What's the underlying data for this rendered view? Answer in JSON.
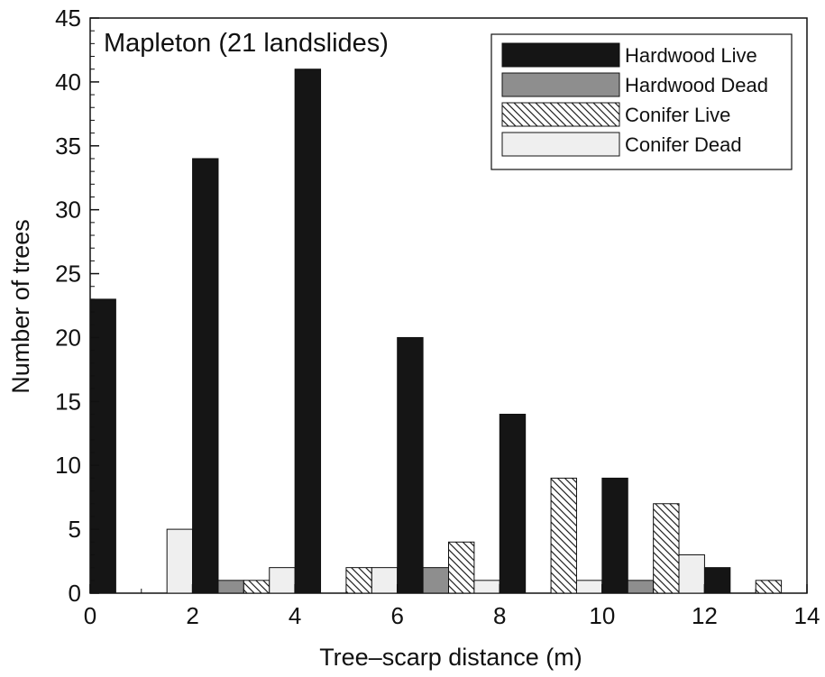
{
  "chart_data": {
    "type": "bar",
    "title": "Mapleton (21 landslides)",
    "xlabel": "Tree–scarp distance (m)",
    "ylabel": "Number of trees",
    "xlim": [
      0,
      14
    ],
    "ylim": [
      0,
      45
    ],
    "xticks": [
      "0",
      "2",
      "4",
      "6",
      "8",
      "10",
      "12",
      "14"
    ],
    "yticks": [
      "0",
      "5",
      "10",
      "15",
      "20",
      "25",
      "30",
      "35",
      "40",
      "45"
    ],
    "bin_starts": [
      0,
      2,
      4,
      6,
      8,
      10,
      12
    ],
    "bin_width": 2,
    "legend_position": "top-right",
    "series": [
      {
        "name": "Hardwood Live",
        "pattern": "solid-black",
        "color": "#111111",
        "values": [
          23,
          34,
          41,
          20,
          14,
          9,
          2
        ]
      },
      {
        "name": "Hardwood Dead",
        "pattern": "solid-gray",
        "color": "#8c8c8c",
        "values": [
          0,
          1,
          0,
          2,
          0,
          1,
          0
        ]
      },
      {
        "name": "Conifer Live",
        "pattern": "diagonal-hatch",
        "color": "#ffffff",
        "values": [
          0,
          1,
          2,
          4,
          9,
          7,
          1
        ]
      },
      {
        "name": "Conifer Dead",
        "pattern": "light-gray",
        "color": "#efefef",
        "values": [
          5,
          2,
          2,
          1,
          1,
          3,
          0
        ]
      }
    ]
  }
}
